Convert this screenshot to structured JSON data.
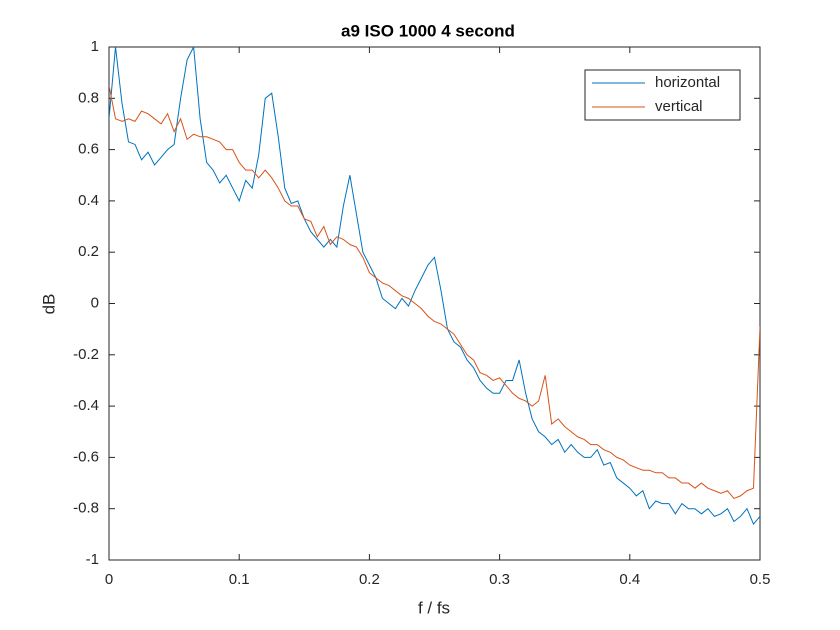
{
  "chart_data": {
    "type": "line",
    "title": "a9 ISO 1000 4 second",
    "x_label": "f / fs",
    "y_label": "dB",
    "x": [
      0,
      0.005,
      0.01,
      0.015,
      0.02,
      0.025,
      0.03,
      0.035,
      0.04,
      0.045,
      0.05,
      0.055,
      0.06,
      0.065,
      0.07,
      0.075,
      0.08,
      0.085,
      0.09,
      0.095,
      0.1,
      0.105,
      0.11,
      0.115,
      0.12,
      0.125,
      0.13,
      0.135,
      0.14,
      0.145,
      0.15,
      0.155,
      0.16,
      0.165,
      0.17,
      0.175,
      0.18,
      0.185,
      0.19,
      0.195,
      0.2,
      0.205,
      0.21,
      0.215,
      0.22,
      0.225,
      0.23,
      0.235,
      0.24,
      0.245,
      0.25,
      0.255,
      0.26,
      0.265,
      0.27,
      0.275,
      0.28,
      0.285,
      0.29,
      0.295,
      0.3,
      0.305,
      0.31,
      0.315,
      0.32,
      0.325,
      0.33,
      0.335,
      0.34,
      0.345,
      0.35,
      0.355,
      0.36,
      0.365,
      0.37,
      0.375,
      0.38,
      0.385,
      0.39,
      0.395,
      0.4,
      0.405,
      0.41,
      0.415,
      0.42,
      0.425,
      0.43,
      0.435,
      0.44,
      0.445,
      0.45,
      0.455,
      0.46,
      0.465,
      0.47,
      0.475,
      0.48,
      0.485,
      0.49,
      0.495,
      0.5
    ],
    "series": [
      {
        "name": "horizontal",
        "color": "#0072bd",
        "values": [
          0.72,
          1.0,
          0.78,
          0.63,
          0.62,
          0.56,
          0.59,
          0.54,
          0.57,
          0.6,
          0.62,
          0.8,
          0.95,
          1.0,
          0.72,
          0.55,
          0.52,
          0.47,
          0.5,
          0.45,
          0.4,
          0.48,
          0.45,
          0.58,
          0.8,
          0.82,
          0.65,
          0.45,
          0.39,
          0.4,
          0.33,
          0.28,
          0.25,
          0.22,
          0.25,
          0.22,
          0.38,
          0.5,
          0.35,
          0.2,
          0.15,
          0.1,
          0.02,
          0.0,
          -0.02,
          0.02,
          -0.01,
          0.05,
          0.1,
          0.15,
          0.18,
          0.05,
          -0.1,
          -0.15,
          -0.17,
          -0.22,
          -0.25,
          -0.3,
          -0.33,
          -0.35,
          -0.35,
          -0.3,
          -0.3,
          -0.22,
          -0.35,
          -0.45,
          -0.5,
          -0.52,
          -0.55,
          -0.53,
          -0.58,
          -0.55,
          -0.58,
          -0.6,
          -0.6,
          -0.57,
          -0.63,
          -0.62,
          -0.68,
          -0.7,
          -0.72,
          -0.75,
          -0.73,
          -0.8,
          -0.77,
          -0.78,
          -0.78,
          -0.82,
          -0.78,
          -0.8,
          -0.8,
          -0.82,
          -0.8,
          -0.83,
          -0.82,
          -0.8,
          -0.85,
          -0.83,
          -0.8,
          -0.86,
          -0.83
        ]
      },
      {
        "name": "vertical",
        "color": "#d95319",
        "values": [
          0.85,
          0.72,
          0.71,
          0.72,
          0.71,
          0.75,
          0.74,
          0.72,
          0.7,
          0.74,
          0.67,
          0.72,
          0.64,
          0.66,
          0.65,
          0.65,
          0.64,
          0.63,
          0.6,
          0.6,
          0.55,
          0.52,
          0.52,
          0.49,
          0.52,
          0.49,
          0.45,
          0.4,
          0.38,
          0.38,
          0.33,
          0.32,
          0.26,
          0.3,
          0.23,
          0.26,
          0.25,
          0.23,
          0.22,
          0.18,
          0.12,
          0.1,
          0.08,
          0.07,
          0.05,
          0.03,
          0.02,
          0.0,
          -0.02,
          -0.05,
          -0.07,
          -0.08,
          -0.1,
          -0.12,
          -0.16,
          -0.2,
          -0.22,
          -0.27,
          -0.28,
          -0.3,
          -0.29,
          -0.32,
          -0.35,
          -0.37,
          -0.38,
          -0.4,
          -0.38,
          -0.28,
          -0.47,
          -0.45,
          -0.48,
          -0.5,
          -0.52,
          -0.53,
          -0.55,
          -0.55,
          -0.57,
          -0.58,
          -0.6,
          -0.61,
          -0.63,
          -0.64,
          -0.65,
          -0.65,
          -0.66,
          -0.66,
          -0.68,
          -0.68,
          -0.7,
          -0.7,
          -0.72,
          -0.7,
          -0.72,
          -0.73,
          -0.74,
          -0.73,
          -0.76,
          -0.75,
          -0.73,
          -0.72,
          -0.09
        ]
      }
    ],
    "xlim": [
      0,
      0.5
    ],
    "xticks": [
      0,
      0.1,
      0.2,
      0.3,
      0.4,
      0.5
    ],
    "ylim": [
      -1,
      1
    ],
    "yticks": [
      -1,
      -0.8,
      -0.6,
      -0.4,
      -0.2,
      0,
      0.2,
      0.4,
      0.6,
      0.8,
      1
    ],
    "grid": false,
    "legend": "top-right"
  }
}
